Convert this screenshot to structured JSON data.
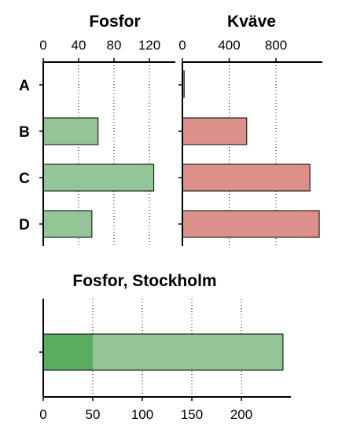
{
  "chart_data": [
    {
      "id": "fosfor",
      "type": "bar",
      "orientation": "horizontal",
      "title": "Fosfor",
      "categories": [
        "A",
        "B",
        "C",
        "D"
      ],
      "values": [
        0,
        62,
        125,
        55
      ],
      "xlim": [
        0,
        160
      ],
      "ticks": [
        0,
        40,
        80,
        120
      ],
      "tick_labels": [
        "0",
        "40",
        "80",
        "120"
      ],
      "axis_position": "top",
      "grid": "dotted vertical",
      "bar_color": "#93c596"
    },
    {
      "id": "kvave",
      "type": "bar",
      "orientation": "horizontal",
      "title": "Kväve",
      "categories": [
        "A",
        "B",
        "C",
        "D"
      ],
      "values": [
        15,
        550,
        1090,
        1170
      ],
      "xlim": [
        0,
        1200
      ],
      "ticks": [
        0,
        400,
        800
      ],
      "tick_labels": [
        "0",
        "400",
        "800"
      ],
      "axis_position": "top",
      "grid": "dotted vertical",
      "bar_color": "#dc9089"
    },
    {
      "id": "stockholm",
      "type": "bar",
      "orientation": "horizontal",
      "stacked": true,
      "title": "Fosfor, Stockholm",
      "categories": [
        ""
      ],
      "series": [
        {
          "values": [
            50
          ],
          "color": "#5aad5e"
        },
        {
          "values": [
            192
          ],
          "color": "#93c596"
        }
      ],
      "xlim": [
        0,
        250
      ],
      "ticks": [
        0,
        50,
        100,
        150,
        200
      ],
      "tick_labels": [
        "0",
        "50",
        "100",
        "150",
        "200"
      ],
      "axis_position": "bottom",
      "grid": "dotted vertical"
    }
  ]
}
